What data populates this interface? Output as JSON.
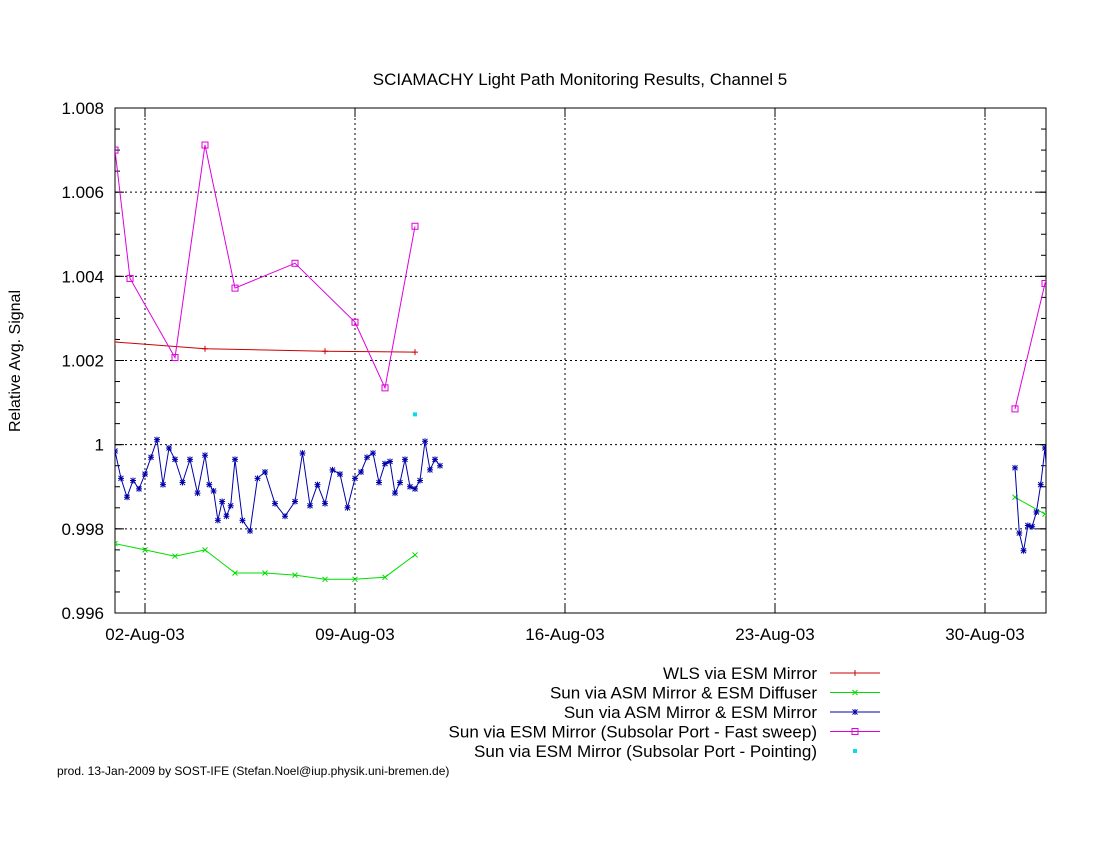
{
  "chart_data": {
    "type": "line",
    "title": "SCIAMACHY Light Path Monitoring Results, Channel 5",
    "xlabel": "",
    "ylabel": "Relative Avg. Signal",
    "xlim": [
      "2003-08-01",
      "2003-08-31"
    ],
    "ylim": [
      0.996,
      1.008
    ],
    "x_ticks": [
      "02-Aug-03",
      "09-Aug-03",
      "16-Aug-03",
      "23-Aug-03",
      "30-Aug-03"
    ],
    "y_ticks": [
      "0.996",
      "0.998",
      "1",
      "1.002",
      "1.004",
      "1.006",
      "1.008"
    ],
    "grid": true,
    "legend_position": "bottom-right",
    "series": [
      {
        "name": "WLS via ESM Mirror",
        "color": "#cc0000",
        "marker": "plus",
        "line": true,
        "points": [
          [
            "2003-08-01",
            1.00244
          ],
          [
            "2003-08-04",
            1.00228
          ],
          [
            "2003-08-08",
            1.00222
          ],
          [
            "2003-08-11",
            1.0022
          ]
        ]
      },
      {
        "name": "Sun via ASM Mirror & ESM Diffuser",
        "color": "#00dd00",
        "marker": "cross",
        "line": true,
        "points": [
          [
            "2003-08-01",
            0.99765
          ],
          [
            "2003-08-02",
            0.9975
          ],
          [
            "2003-08-03",
            0.99735
          ],
          [
            "2003-08-04",
            0.9975
          ],
          [
            "2003-08-05",
            0.99695
          ],
          [
            "2003-08-06",
            0.99695
          ],
          [
            "2003-08-07",
            0.9969
          ],
          [
            "2003-08-08",
            0.9968
          ],
          [
            "2003-08-09",
            0.9968
          ],
          [
            "2003-08-10",
            0.99685
          ],
          [
            "2003-08-11",
            0.99738
          ],
          [
            "2003-08-31",
            0.99875
          ],
          [
            "2003-09-01",
            0.99835
          ],
          [
            "2003-09-01",
            0.9982
          ]
        ]
      },
      {
        "name": "Sun via ASM Mirror & ESM Mirror",
        "color": "#0000aa",
        "marker": "star",
        "line": true,
        "points": [
          [
            "2003-08-01",
            0.99985
          ],
          [
            "2003-08-01",
            0.9992
          ],
          [
            "2003-08-01",
            0.99875
          ],
          [
            "2003-08-01",
            0.99915
          ],
          [
            "2003-08-01",
            0.99895
          ],
          [
            "2003-08-02",
            0.9993
          ],
          [
            "2003-08-02",
            0.9997
          ],
          [
            "2003-08-02",
            1.00012
          ],
          [
            "2003-08-02",
            0.99905
          ],
          [
            "2003-08-02",
            0.99992
          ],
          [
            "2003-08-03",
            0.99965
          ],
          [
            "2003-08-03",
            0.9991
          ],
          [
            "2003-08-03",
            0.99965
          ],
          [
            "2003-08-03",
            0.99885
          ],
          [
            "2003-08-04",
            0.99975
          ],
          [
            "2003-08-04",
            0.99905
          ],
          [
            "2003-08-04",
            0.9989
          ],
          [
            "2003-08-04",
            0.9982
          ],
          [
            "2003-08-04",
            0.99865
          ],
          [
            "2003-08-04",
            0.9983
          ],
          [
            "2003-08-04",
            0.99855
          ],
          [
            "2003-08-05",
            0.99965
          ],
          [
            "2003-08-05",
            0.9982
          ],
          [
            "2003-08-05",
            0.99795
          ],
          [
            "2003-08-05",
            0.9992
          ],
          [
            "2003-08-06",
            0.99935
          ],
          [
            "2003-08-06",
            0.9986
          ],
          [
            "2003-08-06",
            0.9983
          ],
          [
            "2003-08-07",
            0.99865
          ],
          [
            "2003-08-07",
            0.9998
          ],
          [
            "2003-08-07",
            0.99855
          ],
          [
            "2003-08-07",
            0.99905
          ],
          [
            "2003-08-08",
            0.9986
          ],
          [
            "2003-08-08",
            0.9994
          ],
          [
            "2003-08-08",
            0.9993
          ],
          [
            "2003-08-08",
            0.9985
          ],
          [
            "2003-08-09",
            0.9992
          ],
          [
            "2003-08-09",
            0.99935
          ],
          [
            "2003-08-09",
            0.9997
          ],
          [
            "2003-08-09",
            0.9998
          ],
          [
            "2003-08-09",
            0.9991
          ],
          [
            "2003-08-10",
            0.99955
          ],
          [
            "2003-08-10",
            0.9996
          ],
          [
            "2003-08-10",
            0.99885
          ],
          [
            "2003-08-10",
            0.9991
          ],
          [
            "2003-08-10",
            0.99965
          ],
          [
            "2003-08-10",
            0.999
          ],
          [
            "2003-08-11",
            0.99895
          ],
          [
            "2003-08-11",
            0.99915
          ],
          [
            "2003-08-11",
            1.00008
          ],
          [
            "2003-08-11",
            0.9994
          ],
          [
            "2003-08-11",
            0.99965
          ],
          [
            "2003-08-11",
            0.9995
          ],
          [
            "2003-08-31",
            0.99945
          ],
          [
            "2003-08-31",
            0.9979
          ],
          [
            "2003-08-31",
            0.99748
          ],
          [
            "2003-08-31",
            0.99808
          ],
          [
            "2003-08-31",
            0.99805
          ],
          [
            "2003-08-31",
            0.9984
          ],
          [
            "2003-08-31",
            0.99905
          ],
          [
            "2003-09-01",
            0.99992
          ],
          [
            "2003-09-01",
            0.998
          ],
          [
            "2003-09-01",
            0.9999
          ],
          [
            "2003-09-01",
            0.99785
          ],
          [
            "2003-09-01",
            0.99935
          ],
          [
            "2003-09-01",
            0.9977
          ]
        ]
      },
      {
        "name": "Sun via ESM Mirror (Subsolar Port - Fast sweep)",
        "color": "#dd00dd",
        "marker": "square",
        "line": true,
        "points": [
          [
            "2003-08-01",
            1.007
          ],
          [
            "2003-08-01",
            1.00395
          ],
          [
            "2003-08-03",
            1.00207
          ],
          [
            "2003-08-04",
            1.00712
          ],
          [
            "2003-08-05",
            1.00372
          ],
          [
            "2003-08-07",
            1.00431
          ],
          [
            "2003-08-09",
            1.00291
          ],
          [
            "2003-08-10",
            1.00135
          ],
          [
            "2003-08-11",
            1.00519
          ],
          [
            "2003-08-31",
            1.00085
          ],
          [
            "2003-09-01",
            1.00383
          ],
          [
            "2003-09-01",
            1.00295
          ]
        ]
      },
      {
        "name": "Sun via ESM Mirror (Subsolar Port - Pointing)",
        "color": "#00e0e8",
        "marker": "dot",
        "line": false,
        "points": [
          [
            "2003-08-11",
            1.00072
          ]
        ]
      }
    ]
  },
  "footer": "prod. 13-Jan-2009 by SOST-IFE (Stefan.Noel@iup.physik.uni-bremen.de)"
}
